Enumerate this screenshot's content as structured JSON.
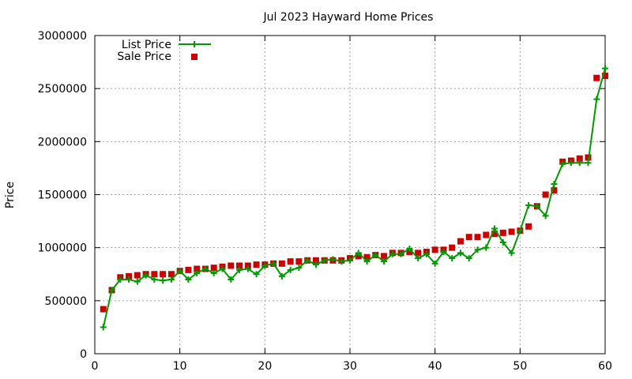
{
  "chart_data": {
    "type": "line",
    "title": "Jul 2023 Hayward Home Prices",
    "xlabel": "",
    "ylabel": "Price",
    "xlim": [
      0,
      60
    ],
    "ylim": [
      0,
      3000000
    ],
    "xticks": [
      "0",
      "10",
      "20",
      "30",
      "40",
      "50",
      "60"
    ],
    "yticks": [
      "0",
      "500000",
      "1000000",
      "1500000",
      "2000000",
      "2500000",
      "3000000"
    ],
    "grid": true,
    "legend_position": "top-left",
    "x": [
      1,
      2,
      3,
      4,
      5,
      6,
      7,
      8,
      9,
      10,
      11,
      12,
      13,
      14,
      15,
      16,
      17,
      18,
      19,
      20,
      21,
      22,
      23,
      24,
      25,
      26,
      27,
      28,
      29,
      30,
      31,
      32,
      33,
      34,
      35,
      36,
      37,
      38,
      39,
      40,
      41,
      42,
      43,
      44,
      45,
      46,
      47,
      48,
      49,
      50,
      51,
      52,
      53,
      54,
      55,
      56,
      57,
      58,
      59,
      60
    ],
    "series": [
      {
        "name": "List Price",
        "style": "line-plus",
        "color": "#009900",
        "values": [
          250000,
          600000,
          700000,
          700000,
          680000,
          740000,
          700000,
          690000,
          700000,
          780000,
          700000,
          760000,
          800000,
          760000,
          800000,
          700000,
          790000,
          800000,
          750000,
          830000,
          850000,
          730000,
          790000,
          810000,
          880000,
          840000,
          880000,
          890000,
          870000,
          880000,
          950000,
          870000,
          930000,
          870000,
          940000,
          940000,
          990000,
          900000,
          940000,
          850000,
          960000,
          900000,
          950000,
          900000,
          980000,
          1000000,
          1180000,
          1050000,
          950000,
          1160000,
          1400000,
          1390000,
          1300000,
          1600000,
          1790000,
          1800000,
          1800000,
          1800000,
          2400000,
          2690000
        ]
      },
      {
        "name": "Sale Price",
        "style": "square",
        "color": "#cc0000",
        "values": [
          420000,
          600000,
          720000,
          730000,
          740000,
          750000,
          750000,
          750000,
          750000,
          780000,
          790000,
          800000,
          800000,
          810000,
          820000,
          830000,
          830000,
          830000,
          840000,
          840000,
          850000,
          850000,
          870000,
          870000,
          880000,
          880000,
          880000,
          880000,
          880000,
          900000,
          920000,
          910000,
          930000,
          920000,
          950000,
          950000,
          960000,
          950000,
          960000,
          980000,
          980000,
          1000000,
          1060000,
          1100000,
          1100000,
          1120000,
          1130000,
          1140000,
          1150000,
          1160000,
          1200000,
          1390000,
          1500000,
          1540000,
          1810000,
          1820000,
          1840000,
          1850000,
          2600000,
          2620000
        ]
      }
    ]
  }
}
